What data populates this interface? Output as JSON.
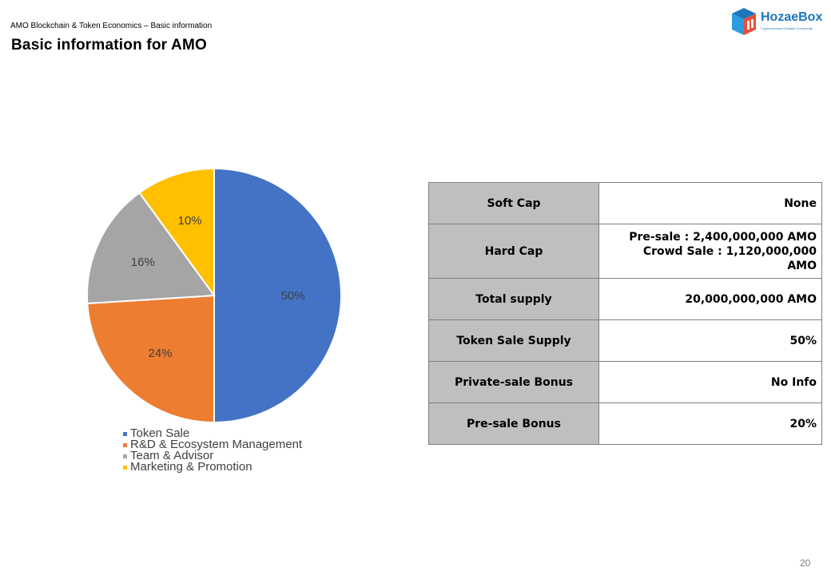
{
  "header": {
    "subtitle": "AMO Blockchain & Token Economics – Basic information",
    "title": "Basic information for AMO"
  },
  "logo": {
    "name": "HozaeBox",
    "tagline": "Cryptocurrency Curation Community",
    "color": "#1b75bb"
  },
  "chart_data": {
    "type": "pie",
    "title": "",
    "categories": [
      "Token Sale",
      "R&D & Ecosystem Management",
      "Team & Advisor",
      "Marketing & Promotion"
    ],
    "values": [
      50,
      24,
      16,
      10
    ],
    "labels": [
      "50%",
      "24%",
      "16%",
      "10%"
    ],
    "colors": [
      "#4472c4",
      "#ed7d31",
      "#a5a5a5",
      "#ffc000"
    ],
    "legend_position": "bottom"
  },
  "table": {
    "rows": [
      {
        "label": "Soft Cap",
        "value": [
          "None"
        ]
      },
      {
        "label": "Hard Cap",
        "value": [
          "Pre-sale : 2,400,000,000 AMO",
          "Crowd Sale : 1,120,000,000",
          "AMO"
        ]
      },
      {
        "label": "Total supply",
        "value": [
          "20,000,000,000 AMO"
        ]
      },
      {
        "label": "Token Sale Supply",
        "value": [
          "50%"
        ]
      },
      {
        "label": "Private-sale Bonus",
        "value": [
          "No Info"
        ]
      },
      {
        "label": "Pre-sale Bonus",
        "value": [
          "20%"
        ]
      }
    ]
  },
  "page_number": "20"
}
